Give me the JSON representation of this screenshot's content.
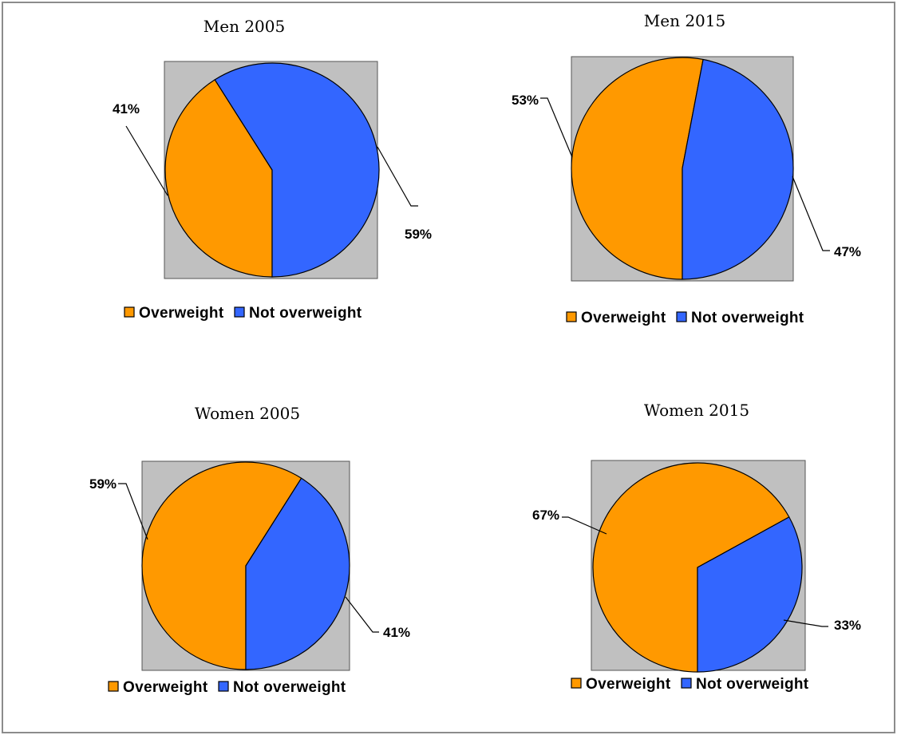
{
  "colors": {
    "overweight": "#ff9900",
    "not_overweight": "#3366ff",
    "plot_area": "#c0c0c0"
  },
  "chart_data": [
    {
      "type": "pie",
      "title": "Men 2005",
      "categories": [
        "Overweight",
        "Not overweight"
      ],
      "values": [
        41,
        59
      ],
      "labels": [
        "41%",
        "59%"
      ],
      "legend": "bottom"
    },
    {
      "type": "pie",
      "title": "Men 2015",
      "categories": [
        "Overweight",
        "Not overweight"
      ],
      "values": [
        53,
        47
      ],
      "labels": [
        "53%",
        "47%"
      ],
      "legend": "bottom"
    },
    {
      "type": "pie",
      "title": "Women 2005",
      "categories": [
        "Overweight",
        "Not overweight"
      ],
      "values": [
        59,
        41
      ],
      "labels": [
        "59%",
        "41%"
      ],
      "legend": "bottom"
    },
    {
      "type": "pie",
      "title": "Women 2015",
      "categories": [
        "Overweight",
        "Not overweight"
      ],
      "values": [
        67,
        33
      ],
      "labels": [
        "67%",
        "33%"
      ],
      "legend": "bottom"
    }
  ]
}
